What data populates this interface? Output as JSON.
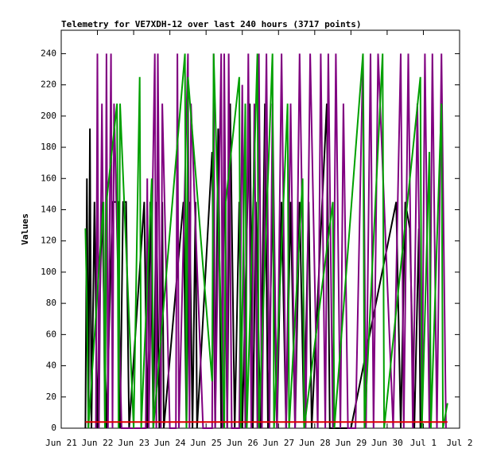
{
  "chart_data": {
    "type": "line",
    "title": "Telemetry for VE7XDH-12 over last 240 hours (3717 points)",
    "y_label": "Values",
    "xlim": [
      0,
      264
    ],
    "xticks": [
      {
        "value": 0,
        "label": "Jun 21"
      },
      {
        "value": 24,
        "label": "Jun 22"
      },
      {
        "value": 48,
        "label": "Jun 23"
      },
      {
        "value": 72,
        "label": "Jun 24"
      },
      {
        "value": 96,
        "label": "Jun 25"
      },
      {
        "value": 120,
        "label": "Jun 26"
      },
      {
        "value": 144,
        "label": "Jun 27"
      },
      {
        "value": 168,
        "label": "Jun 28"
      },
      {
        "value": 192,
        "label": "Jun 29"
      },
      {
        "value": 216,
        "label": "Jun 30"
      },
      {
        "value": 240,
        "label": "Jul 1"
      },
      {
        "value": 264,
        "label": "Jul 2"
      }
    ],
    "ylim": [
      0,
      255
    ],
    "yticks": [
      0,
      20,
      40,
      60,
      80,
      100,
      120,
      140,
      160,
      180,
      200,
      220,
      240
    ],
    "grid": false,
    "series": [
      {
        "color": "#000000",
        "x": [
          16,
          17,
          18,
          19,
          20,
          22,
          24,
          27,
          30,
          34,
          38,
          39,
          41,
          43,
          45,
          55,
          57,
          59,
          61,
          63,
          65,
          67,
          68,
          81,
          83,
          85,
          87,
          89,
          90,
          100,
          102,
          104,
          106,
          108,
          110,
          112,
          115,
          118,
          120,
          125,
          127,
          129,
          132,
          135,
          137,
          140,
          143,
          146,
          149,
          152,
          155,
          158,
          161,
          164,
          166,
          176,
          178,
          192,
          222,
          225,
          228,
          231,
          234,
          237,
          238
        ],
        "values": [
          0,
          160,
          0,
          192,
          0,
          145,
          0,
          145,
          0,
          145,
          145,
          0,
          145,
          145,
          0,
          145,
          0,
          145,
          0,
          145,
          0,
          145,
          0,
          145,
          0,
          145,
          0,
          145,
          0,
          177,
          0,
          192,
          0,
          177,
          0,
          208,
          0,
          145,
          0,
          208,
          0,
          145,
          0,
          208,
          0,
          145,
          0,
          145,
          0,
          145,
          0,
          145,
          0,
          145,
          0,
          208,
          0,
          0,
          145,
          0,
          145,
          128,
          0,
          128,
          0
        ]
      },
      {
        "color": "#800080",
        "x": [
          23,
          24,
          25,
          27,
          29,
          30,
          31,
          33,
          34,
          35,
          40,
          48,
          56,
          57,
          58,
          62,
          63,
          64,
          66,
          67,
          72,
          76,
          77,
          78,
          84,
          85,
          86,
          94,
          100,
          101,
          102,
          106,
          107,
          108,
          110,
          111,
          113,
          118,
          120,
          122,
          124,
          126,
          128,
          130,
          131,
          133,
          136,
          138,
          140,
          143,
          146,
          149,
          152,
          155,
          158,
          162,
          165,
          170,
          172,
          175,
          177,
          180,
          182,
          185,
          187,
          190,
          195,
          200,
          202,
          205,
          207,
          210,
          220,
          225,
          227,
          230,
          233,
          236,
          239,
          241,
          244,
          246,
          249,
          252,
          255
        ],
        "values": [
          0,
          240,
          0,
          208,
          0,
          240,
          0,
          240,
          0,
          208,
          0,
          0,
          0,
          160,
          0,
          240,
          0,
          240,
          0,
          208,
          0,
          0,
          240,
          0,
          240,
          0,
          208,
          0,
          0,
          240,
          0,
          240,
          0,
          240,
          0,
          240,
          0,
          0,
          220,
          0,
          240,
          0,
          208,
          0,
          240,
          0,
          240,
          0,
          208,
          0,
          240,
          0,
          208,
          0,
          240,
          0,
          240,
          0,
          240,
          0,
          240,
          0,
          240,
          0,
          208,
          0,
          0,
          240,
          0,
          240,
          0,
          240,
          0,
          240,
          0,
          240,
          0,
          208,
          0,
          240,
          0,
          240,
          0,
          240,
          0
        ]
      },
      {
        "color": "#00a000",
        "x": [
          16,
          17,
          18,
          28,
          29,
          30,
          37,
          38,
          39,
          48,
          52,
          53,
          60,
          61,
          82,
          83,
          84,
          100,
          101,
          108,
          109,
          118,
          119,
          122,
          123,
          130,
          131,
          140,
          141,
          150,
          151,
          160,
          161,
          180,
          181,
          200,
          201,
          213,
          214,
          238,
          239,
          244,
          245,
          252,
          253,
          256
        ],
        "values": [
          128,
          80,
          0,
          145,
          0,
          145,
          208,
          0,
          208,
          0,
          225,
          0,
          160,
          0,
          240,
          0,
          225,
          30,
          240,
          0,
          145,
          225,
          0,
          208,
          0,
          240,
          0,
          240,
          0,
          208,
          0,
          160,
          0,
          145,
          0,
          240,
          0,
          240,
          0,
          225,
          0,
          177,
          0,
          208,
          0,
          16
        ]
      },
      {
        "color": "#e00000",
        "x": [
          16,
          256
        ],
        "values": [
          4,
          4
        ]
      }
    ]
  }
}
